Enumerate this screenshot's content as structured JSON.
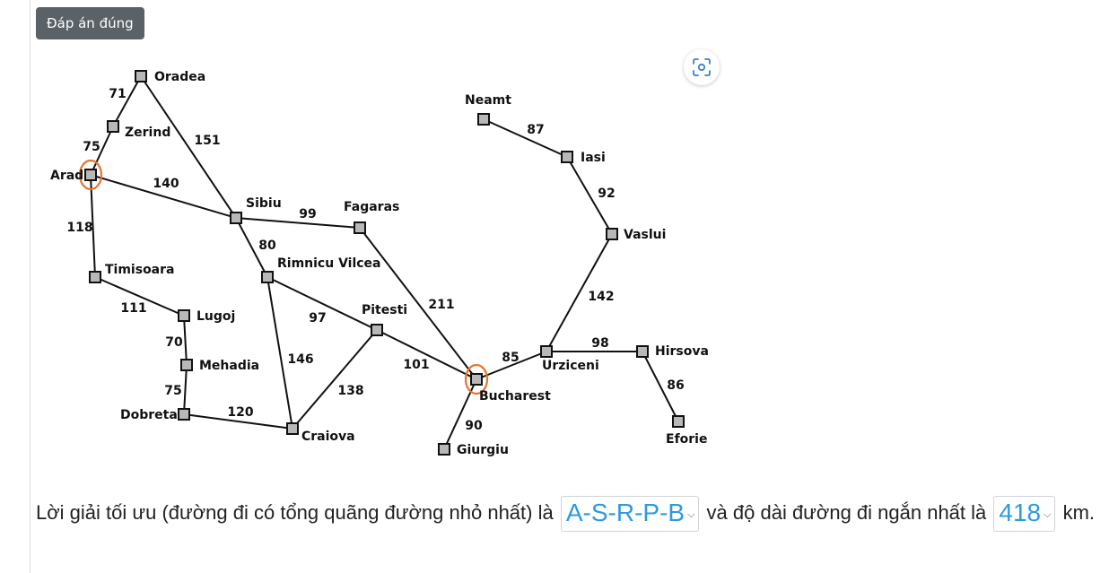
{
  "header": {
    "answer_button_label": "Đáp án đúng"
  },
  "icons": {
    "scan": "scan-icon"
  },
  "graph": {
    "nodes": [
      {
        "id": "oradea",
        "label": "Oradea",
        "highlight": false
      },
      {
        "id": "zerind",
        "label": "Zerind",
        "highlight": false
      },
      {
        "id": "arad",
        "label": "Arad",
        "highlight": true
      },
      {
        "id": "sibiu",
        "label": "Sibiu",
        "highlight": false
      },
      {
        "id": "fagaras",
        "label": "Fagaras",
        "highlight": false
      },
      {
        "id": "timisoara",
        "label": "Timisoara",
        "highlight": false
      },
      {
        "id": "lugoj",
        "label": "Lugoj",
        "highlight": false
      },
      {
        "id": "mehadia",
        "label": "Mehadia",
        "highlight": false
      },
      {
        "id": "dobreta",
        "label": "Dobreta",
        "highlight": false
      },
      {
        "id": "rimnicu",
        "label": "Rimnicu Vilcea",
        "highlight": false
      },
      {
        "id": "pitesti",
        "label": "Pitesti",
        "highlight": false
      },
      {
        "id": "craiova",
        "label": "Craiova",
        "highlight": false
      },
      {
        "id": "bucharest",
        "label": "Bucharest",
        "highlight": true
      },
      {
        "id": "giurgiu",
        "label": "Giurgiu",
        "highlight": false
      },
      {
        "id": "urziceni",
        "label": "Urziceni",
        "highlight": false
      },
      {
        "id": "hirsova",
        "label": "Hirsova",
        "highlight": false
      },
      {
        "id": "eforie",
        "label": "Eforie",
        "highlight": false
      },
      {
        "id": "vaslui",
        "label": "Vaslui",
        "highlight": false
      },
      {
        "id": "iasi",
        "label": "Iasi",
        "highlight": false
      },
      {
        "id": "neamt",
        "label": "Neamt",
        "highlight": false
      }
    ],
    "edges": [
      {
        "from": "oradea",
        "to": "zerind",
        "weight": "71"
      },
      {
        "from": "zerind",
        "to": "arad",
        "weight": "75"
      },
      {
        "from": "oradea",
        "to": "sibiu",
        "weight": "151"
      },
      {
        "from": "arad",
        "to": "sibiu",
        "weight": "140"
      },
      {
        "from": "arad",
        "to": "timisoara",
        "weight": "118"
      },
      {
        "from": "timisoara",
        "to": "lugoj",
        "weight": "111"
      },
      {
        "from": "lugoj",
        "to": "mehadia",
        "weight": "70"
      },
      {
        "from": "mehadia",
        "to": "dobreta",
        "weight": "75"
      },
      {
        "from": "dobreta",
        "to": "craiova",
        "weight": "120"
      },
      {
        "from": "sibiu",
        "to": "fagaras",
        "weight": "99"
      },
      {
        "from": "sibiu",
        "to": "rimnicu",
        "weight": "80"
      },
      {
        "from": "rimnicu",
        "to": "pitesti",
        "weight": "97"
      },
      {
        "from": "rimnicu",
        "to": "craiova",
        "weight": "146"
      },
      {
        "from": "craiova",
        "to": "pitesti",
        "weight": "138"
      },
      {
        "from": "pitesti",
        "to": "bucharest",
        "weight": "101"
      },
      {
        "from": "fagaras",
        "to": "bucharest",
        "weight": "211"
      },
      {
        "from": "bucharest",
        "to": "giurgiu",
        "weight": "90"
      },
      {
        "from": "bucharest",
        "to": "urziceni",
        "weight": "85"
      },
      {
        "from": "urziceni",
        "to": "hirsova",
        "weight": "98"
      },
      {
        "from": "hirsova",
        "to": "eforie",
        "weight": "86"
      },
      {
        "from": "urziceni",
        "to": "vaslui",
        "weight": "142"
      },
      {
        "from": "vaslui",
        "to": "iasi",
        "weight": "92"
      },
      {
        "from": "iasi",
        "to": "neamt",
        "weight": "87"
      }
    ]
  },
  "question": {
    "text_before": "Lời giải tối ưu (đường đi có tổng quãng đường nhỏ nhất) là",
    "path_selected": "A-S-R-P-B",
    "text_middle": "và độ dài đường đi ngắn nhất là",
    "distance_selected": "418",
    "text_after": "km."
  }
}
